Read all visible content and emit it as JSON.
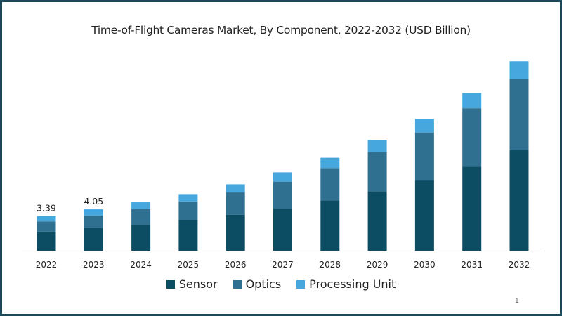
{
  "chart_data": {
    "type": "bar",
    "stacked": true,
    "title": "Time-of-Flight Cameras Market, By Component, 2022-2032 (USD Billion)",
    "xlabel": "",
    "ylabel": "",
    "ylim": [
      0,
      20
    ],
    "grid": false,
    "legend_position": "bottom",
    "categories": [
      "2022",
      "2023",
      "2024",
      "2025",
      "2026",
      "2027",
      "2028",
      "2029",
      "2030",
      "2031",
      "2032"
    ],
    "series": [
      {
        "name": "Sensor",
        "color": "#0d4d63",
        "values": [
          1.86,
          2.23,
          2.57,
          3.02,
          3.53,
          4.12,
          4.91,
          5.82,
          6.87,
          8.21,
          9.83
        ]
      },
      {
        "name": "Optics",
        "color": "#2f6f8f",
        "values": [
          1.01,
          1.21,
          1.51,
          1.81,
          2.17,
          2.64,
          3.18,
          3.85,
          4.7,
          5.73,
          7.01
        ]
      },
      {
        "name": "Processing Unit",
        "color": "#46a7de",
        "values": [
          0.52,
          0.61,
          0.66,
          0.71,
          0.8,
          0.91,
          1.01,
          1.17,
          1.33,
          1.49,
          1.7
        ]
      }
    ],
    "data_labels": [
      {
        "category": "2022",
        "text": "3.39"
      },
      {
        "category": "2023",
        "text": "4.05"
      }
    ]
  },
  "page_number": "1"
}
